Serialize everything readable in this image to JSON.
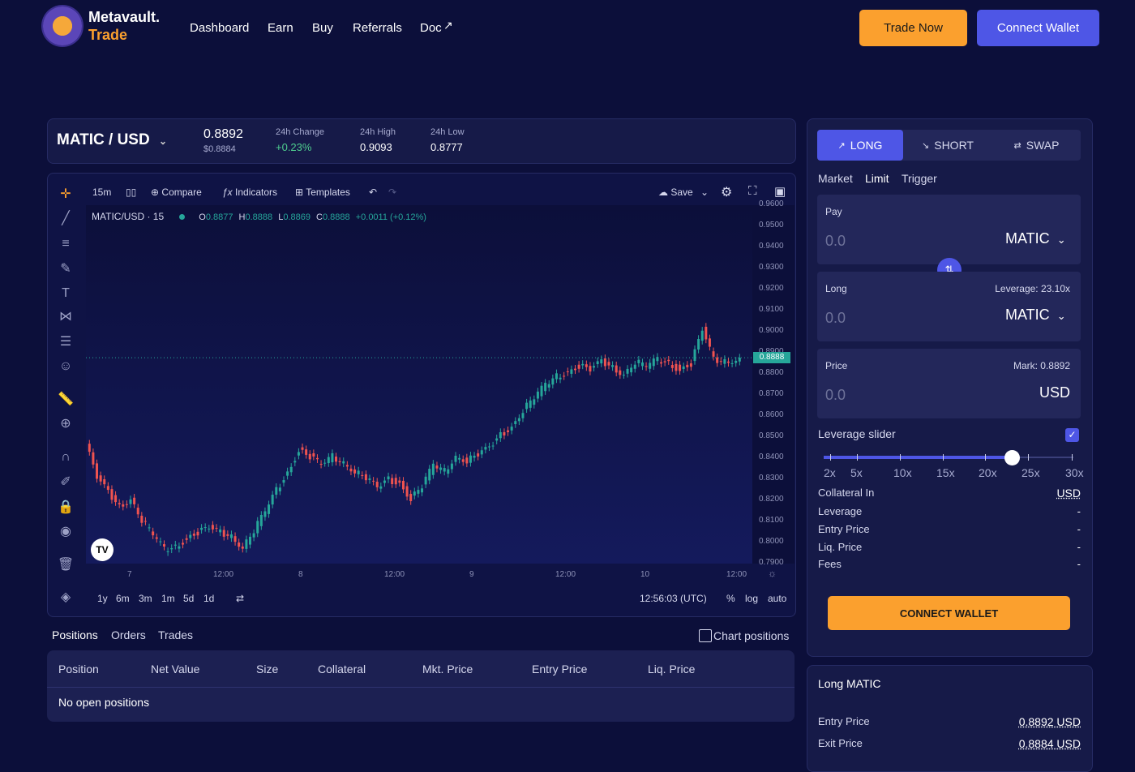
{
  "brand": {
    "name": "Metavault.",
    "sub": "Trade"
  },
  "nav": {
    "dashboard": "Dashboard",
    "earn": "Earn",
    "buy": "Buy",
    "referrals": "Referrals",
    "doc": "Doc"
  },
  "header": {
    "trade_now": "Trade Now",
    "connect_wallet": "Connect Wallet"
  },
  "ticker": {
    "pair": "MATIC / USD",
    "price": "0.8892",
    "price_sub": "$0.8884",
    "change_label": "24h Change",
    "change_value": "+0.23%",
    "high_label": "24h High",
    "high_value": "0.9093",
    "low_label": "24h Low",
    "low_value": "0.8777"
  },
  "chart_toolbar": {
    "interval": "15m",
    "compare": "Compare",
    "indicators": "Indicators",
    "templates": "Templates",
    "save": "Save"
  },
  "legend": {
    "symbol": "MATIC/USD · 15",
    "o_label": "O",
    "o": "0.8877",
    "h_label": "H",
    "h": "0.8888",
    "l_label": "L",
    "l": "0.8869",
    "c_label": "C",
    "c": "0.8888",
    "chg": "+0.0011 (+0.12%)"
  },
  "chart_data": {
    "type": "line",
    "yticks": [
      "0.9600",
      "0.9500",
      "0.9400",
      "0.9300",
      "0.9200",
      "0.9100",
      "0.9000",
      "0.8900",
      "0.8800",
      "0.8700",
      "0.8600",
      "0.8500",
      "0.8400",
      "0.8300",
      "0.8200",
      "0.8100",
      "0.8000",
      "0.7900"
    ],
    "xticks": [
      "7",
      "12:00",
      "8",
      "12:00",
      "9",
      "12:00",
      "10",
      "12:00"
    ],
    "ylim": [
      0.79,
      0.96
    ],
    "last_price": "0.8888",
    "values": [
      0.848,
      0.832,
      0.825,
      0.818,
      0.822,
      0.812,
      0.805,
      0.798,
      0.799,
      0.803,
      0.806,
      0.808,
      0.806,
      0.804,
      0.799,
      0.807,
      0.816,
      0.826,
      0.834,
      0.845,
      0.842,
      0.838,
      0.842,
      0.839,
      0.835,
      0.832,
      0.827,
      0.831,
      0.829,
      0.822,
      0.828,
      0.838,
      0.835,
      0.842,
      0.84,
      0.843,
      0.846,
      0.852,
      0.856,
      0.864,
      0.87,
      0.876,
      0.88,
      0.882,
      0.885,
      0.883,
      0.887,
      0.884,
      0.881,
      0.887,
      0.885,
      0.888,
      0.886,
      0.883,
      0.886,
      0.902,
      0.888,
      0.887,
      0.888
    ],
    "candle_up_color": "#26a69a",
    "candle_down_color": "#ef5350"
  },
  "range": {
    "r1y": "1y",
    "r6m": "6m",
    "r3m": "3m",
    "r1m": "1m",
    "r5d": "5d",
    "r1d": "1d",
    "time": "12:56:03 (UTC)",
    "pct": "%",
    "log": "log",
    "auto": "auto"
  },
  "positions": {
    "tabs": [
      "Positions",
      "Orders",
      "Trades"
    ],
    "chart_positions": "Chart positions",
    "headers": [
      "Position",
      "Net Value",
      "Size",
      "Collateral",
      "Mkt. Price",
      "Entry Price",
      "Liq. Price"
    ],
    "empty": "No open positions"
  },
  "order": {
    "tabs": {
      "long": "LONG",
      "short": "SHORT",
      "swap": "SWAP"
    },
    "types": {
      "market": "Market",
      "limit": "Limit",
      "trigger": "Trigger"
    },
    "pay": {
      "label": "Pay",
      "value": "0.0",
      "token": "MATIC"
    },
    "long": {
      "label": "Long",
      "leverage": "Leverage: 23.10x",
      "value": "0.0",
      "token": "MATIC"
    },
    "price": {
      "label": "Price",
      "mark": "Mark: 0.8892",
      "value": "0.0",
      "unit": "USD"
    },
    "leverage_slider": {
      "label": "Leverage slider",
      "marks": [
        "2x",
        "5x",
        "10x",
        "15x",
        "20x",
        "25x",
        "30x"
      ],
      "value": 23.1
    },
    "details": [
      {
        "label": "Collateral In",
        "value": "USD"
      },
      {
        "label": "Leverage",
        "value": "-"
      },
      {
        "label": "Entry Price",
        "value": "-"
      },
      {
        "label": "Liq. Price",
        "value": "-"
      },
      {
        "label": "Fees",
        "value": "-"
      }
    ],
    "connect": "CONNECT WALLET"
  },
  "long_box": {
    "title": "Long MATIC",
    "entry_label": "Entry Price",
    "entry_value": "0.8892 USD",
    "exit_label": "Exit Price",
    "exit_value": "0.8884 USD"
  }
}
